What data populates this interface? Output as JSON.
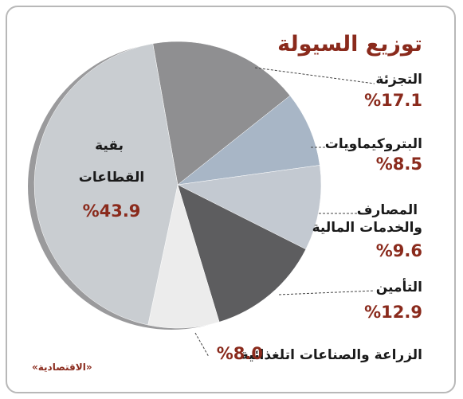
{
  "chart_data": {
    "type": "pie",
    "title": "توزيع السيولة",
    "source": "«الاقتصادية»",
    "categories": [
      "التجزئة",
      "البتروكيماويات",
      "المصارف والخدمات المالية",
      "التأمين",
      "الزراعة والصناعات اتلغذائية",
      "بقية القطاعات"
    ],
    "values": [
      17.1,
      8.5,
      9.6,
      12.9,
      8.0,
      43.9
    ],
    "value_labels": [
      "%17.1",
      "%8.5",
      "%9.6",
      "%12.9",
      "%8.0",
      "%43.9"
    ],
    "colors": [
      "#8f8f91",
      "#a8b6c6",
      "#c3c9d1",
      "#5d5d5f",
      "#ececec",
      "#c9cdd1"
    ]
  }
}
